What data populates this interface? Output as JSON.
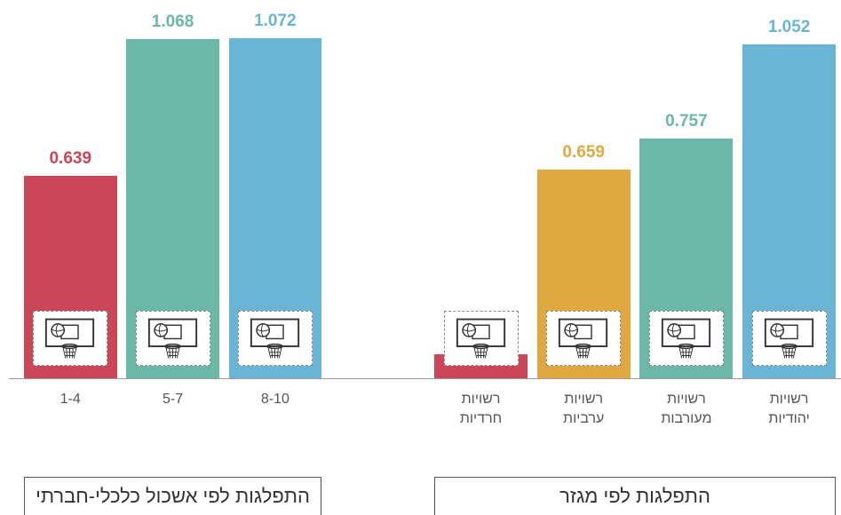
{
  "chart_data": [
    {
      "type": "bar",
      "title": "התפלגות לפי אשכול כלכלי-חברתי",
      "categories": [
        "1-4",
        "5-7",
        "8-10"
      ],
      "values": [
        0.639,
        1.068,
        1.072
      ],
      "colors": [
        "#cc4659",
        "#6bb8a8",
        "#6ab4d6"
      ]
    },
    {
      "type": "bar",
      "title": "התפלגות לפי מגזר",
      "categories": [
        "רשויות\nחרדיות",
        "רשויות\nערביות",
        "רשויות\nמעורבות",
        "רשויות\nיהודיות"
      ],
      "values": [
        0.076,
        0.659,
        0.757,
        1.052
      ],
      "colors": [
        "#cc4659",
        "#e0a93f",
        "#6bb8a8",
        "#6ab4d6"
      ]
    }
  ]
}
